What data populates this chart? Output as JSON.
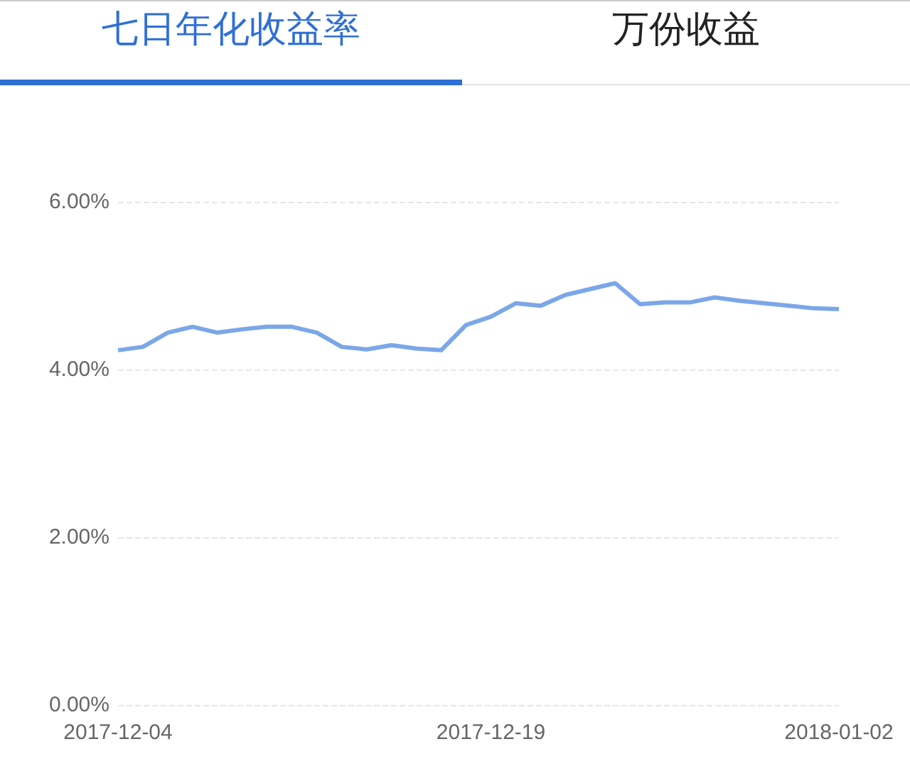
{
  "chart_data": {
    "type": "line",
    "title": "七日年化收益率",
    "annotations": [
      "万份收益"
    ],
    "categories": [
      "2017-12-04",
      null,
      null,
      null,
      null,
      null,
      null,
      null,
      null,
      null,
      null,
      null,
      null,
      null,
      null,
      "2017-12-19",
      null,
      null,
      null,
      null,
      null,
      null,
      null,
      null,
      null,
      null,
      null,
      null,
      null,
      "2018-01-02"
    ],
    "series": [
      {
        "color": "#7ba7e8",
        "values": [
          4.23,
          4.27,
          4.44,
          4.51,
          4.44,
          4.48,
          4.51,
          4.51,
          4.44,
          4.27,
          4.24,
          4.29,
          4.25,
          4.23,
          4.53,
          4.63,
          4.79,
          4.76,
          4.89,
          4.96,
          5.03,
          4.78,
          4.8,
          4.8,
          4.86,
          4.82,
          4.79,
          4.76,
          4.73,
          4.72
        ]
      }
    ],
    "ylim": [
      0,
      6
    ],
    "yticks": [
      {
        "value": 0,
        "label": "0.00%"
      },
      {
        "value": 2,
        "label": "2.00%"
      },
      {
        "value": 4,
        "label": "4.00%"
      },
      {
        "value": 6,
        "label": "6.00%"
      }
    ],
    "grid": "y",
    "marker": "none",
    "line_style": "solid"
  }
}
